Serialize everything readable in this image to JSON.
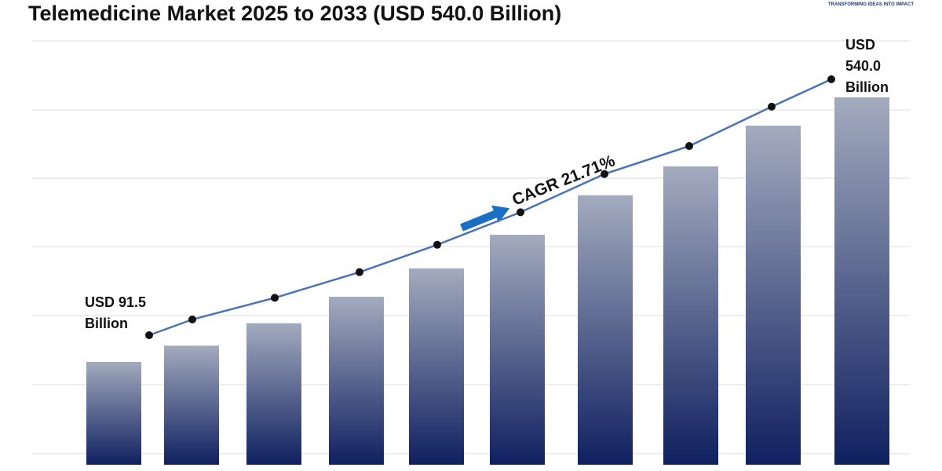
{
  "chart_data": {
    "type": "bar",
    "title": "Telemedicine Market 2025 to 2033 (USD 540.0 Billion)",
    "logo_tagline": "TRANSFORMING IDEAS INTO IMPACT",
    "annotation": "CAGR 21.71%",
    "categories": [
      null,
      null,
      null,
      null,
      null,
      null,
      null,
      null,
      null,
      null
    ],
    "values": [
      91.5,
      119,
      157,
      202,
      250,
      307,
      374,
      423,
      492,
      540.0
    ],
    "value_labels": [
      "USD 91.5 Billion",
      null,
      null,
      null,
      null,
      null,
      null,
      null,
      null,
      "USD 540.0 Billion"
    ],
    "color": "#0f2060",
    "line_color": "#4a72b8"
  }
}
